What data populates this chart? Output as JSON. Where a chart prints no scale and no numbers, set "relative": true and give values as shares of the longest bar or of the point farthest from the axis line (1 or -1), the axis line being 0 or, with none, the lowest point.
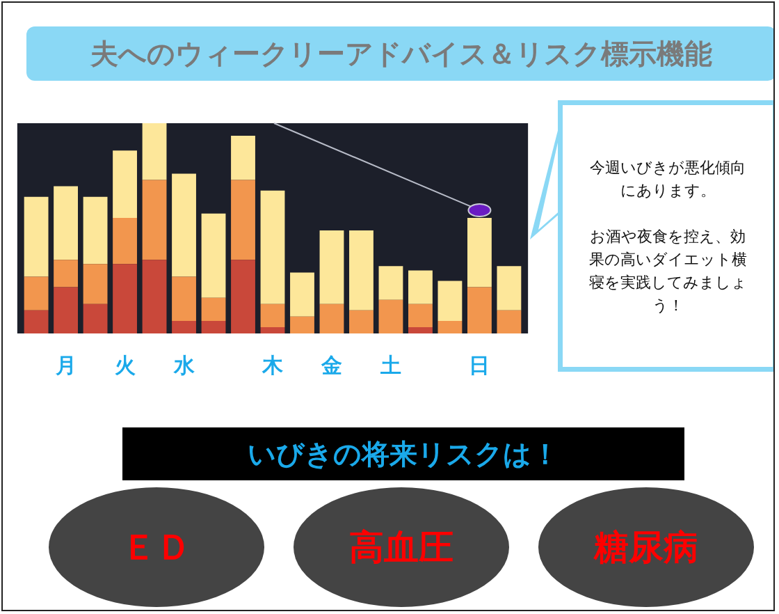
{
  "chart_data": {
    "type": "bar",
    "title": "夫へのウィークリーアドバイス＆リスク標示機能",
    "categories": [
      null,
      "月",
      null,
      "火",
      null,
      "水",
      null,
      null,
      "木",
      null,
      "金",
      null,
      "土",
      null,
      null,
      "日",
      null
    ],
    "relative": true,
    "stacked": true,
    "legend": false,
    "series": [
      {
        "color": "#c9483a",
        "values": [
          0.11,
          0.22,
          0.14,
          0.33,
          0.35,
          0.06,
          0.06,
          0.35,
          0.03,
          0,
          0,
          0,
          0,
          0.03,
          0,
          0,
          0
        ]
      },
      {
        "color": "#f2964e",
        "values": [
          0.16,
          0.13,
          0.19,
          0.22,
          0.38,
          0.21,
          0.11,
          0.38,
          0.11,
          0.08,
          0.14,
          0.11,
          0.16,
          0.11,
          0.06,
          0.22,
          0.11
        ]
      },
      {
        "color": "#fde79a",
        "values": [
          0.38,
          0.35,
          0.32,
          0.32,
          0.27,
          0.49,
          0.4,
          0.21,
          0.54,
          0.21,
          0.35,
          0.38,
          0.16,
          0.16,
          0.19,
          0.33,
          0.21
        ]
      }
    ],
    "annotations": [
      "今週いびきが悪化傾向にあります。",
      "お酒や夜食を控え、効果の高いダイエット横寝を実践してみましょう！",
      "いびきの将来リスクは！",
      "ＥＤ",
      "高血圧",
      "糖尿病"
    ]
  }
}
